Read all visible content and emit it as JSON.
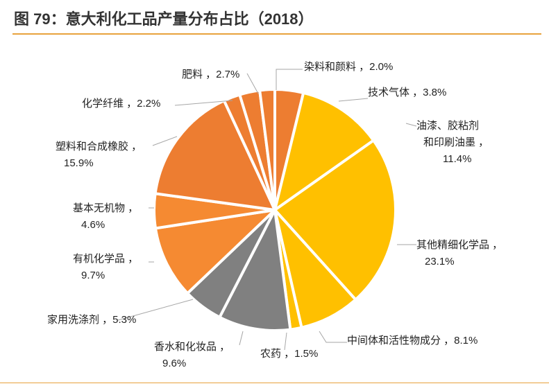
{
  "figure": {
    "title": "图 79：意大利化工品产量分布占比（2018）"
  },
  "chart_data": {
    "type": "pie",
    "start": "12 o'clock",
    "direction": "clockwise",
    "slices": [
      {
        "label": "技术气体",
        "value": 3.8,
        "value_text": "3.8%",
        "color": "#ed7d31"
      },
      {
        "label": "油漆、胶粘剂和印刷油墨",
        "value": 11.4,
        "value_text": "11.4%",
        "color": "#ffc000"
      },
      {
        "label": "其他精细化学品",
        "value": 23.1,
        "value_text": "23.1%",
        "color": "#ffc000"
      },
      {
        "label": "中间体和活性物成分",
        "value": 8.1,
        "value_text": "8.1%",
        "color": "#ffc000"
      },
      {
        "label": "农药",
        "value": 1.5,
        "value_text": "1.5%",
        "color": "#ffc000"
      },
      {
        "label": "香水和化妆品",
        "value": 9.6,
        "value_text": "9.6%",
        "color": "#808080"
      },
      {
        "label": "家用洗涤剂",
        "value": 5.3,
        "value_text": "5.3%",
        "color": "#808080"
      },
      {
        "label": "有机化学品",
        "value": 9.7,
        "value_text": "9.7%",
        "color": "#f58a32"
      },
      {
        "label": "基本无机物",
        "value": 4.6,
        "value_text": "4.6%",
        "color": "#f58a32"
      },
      {
        "label": "塑料和合成橡胶",
        "value": 15.9,
        "value_text": "15.9%",
        "color": "#ed7d31"
      },
      {
        "label": "化学纤维",
        "value": 2.2,
        "value_text": "2.2%",
        "color": "#ed7d31"
      },
      {
        "label": "肥料",
        "value": 2.7,
        "value_text": "2.7%",
        "color": "#ed7d31"
      },
      {
        "label": "染料和颜料",
        "value": 2.0,
        "value_text": "2.0%",
        "color": "#ed7d31"
      }
    ]
  }
}
